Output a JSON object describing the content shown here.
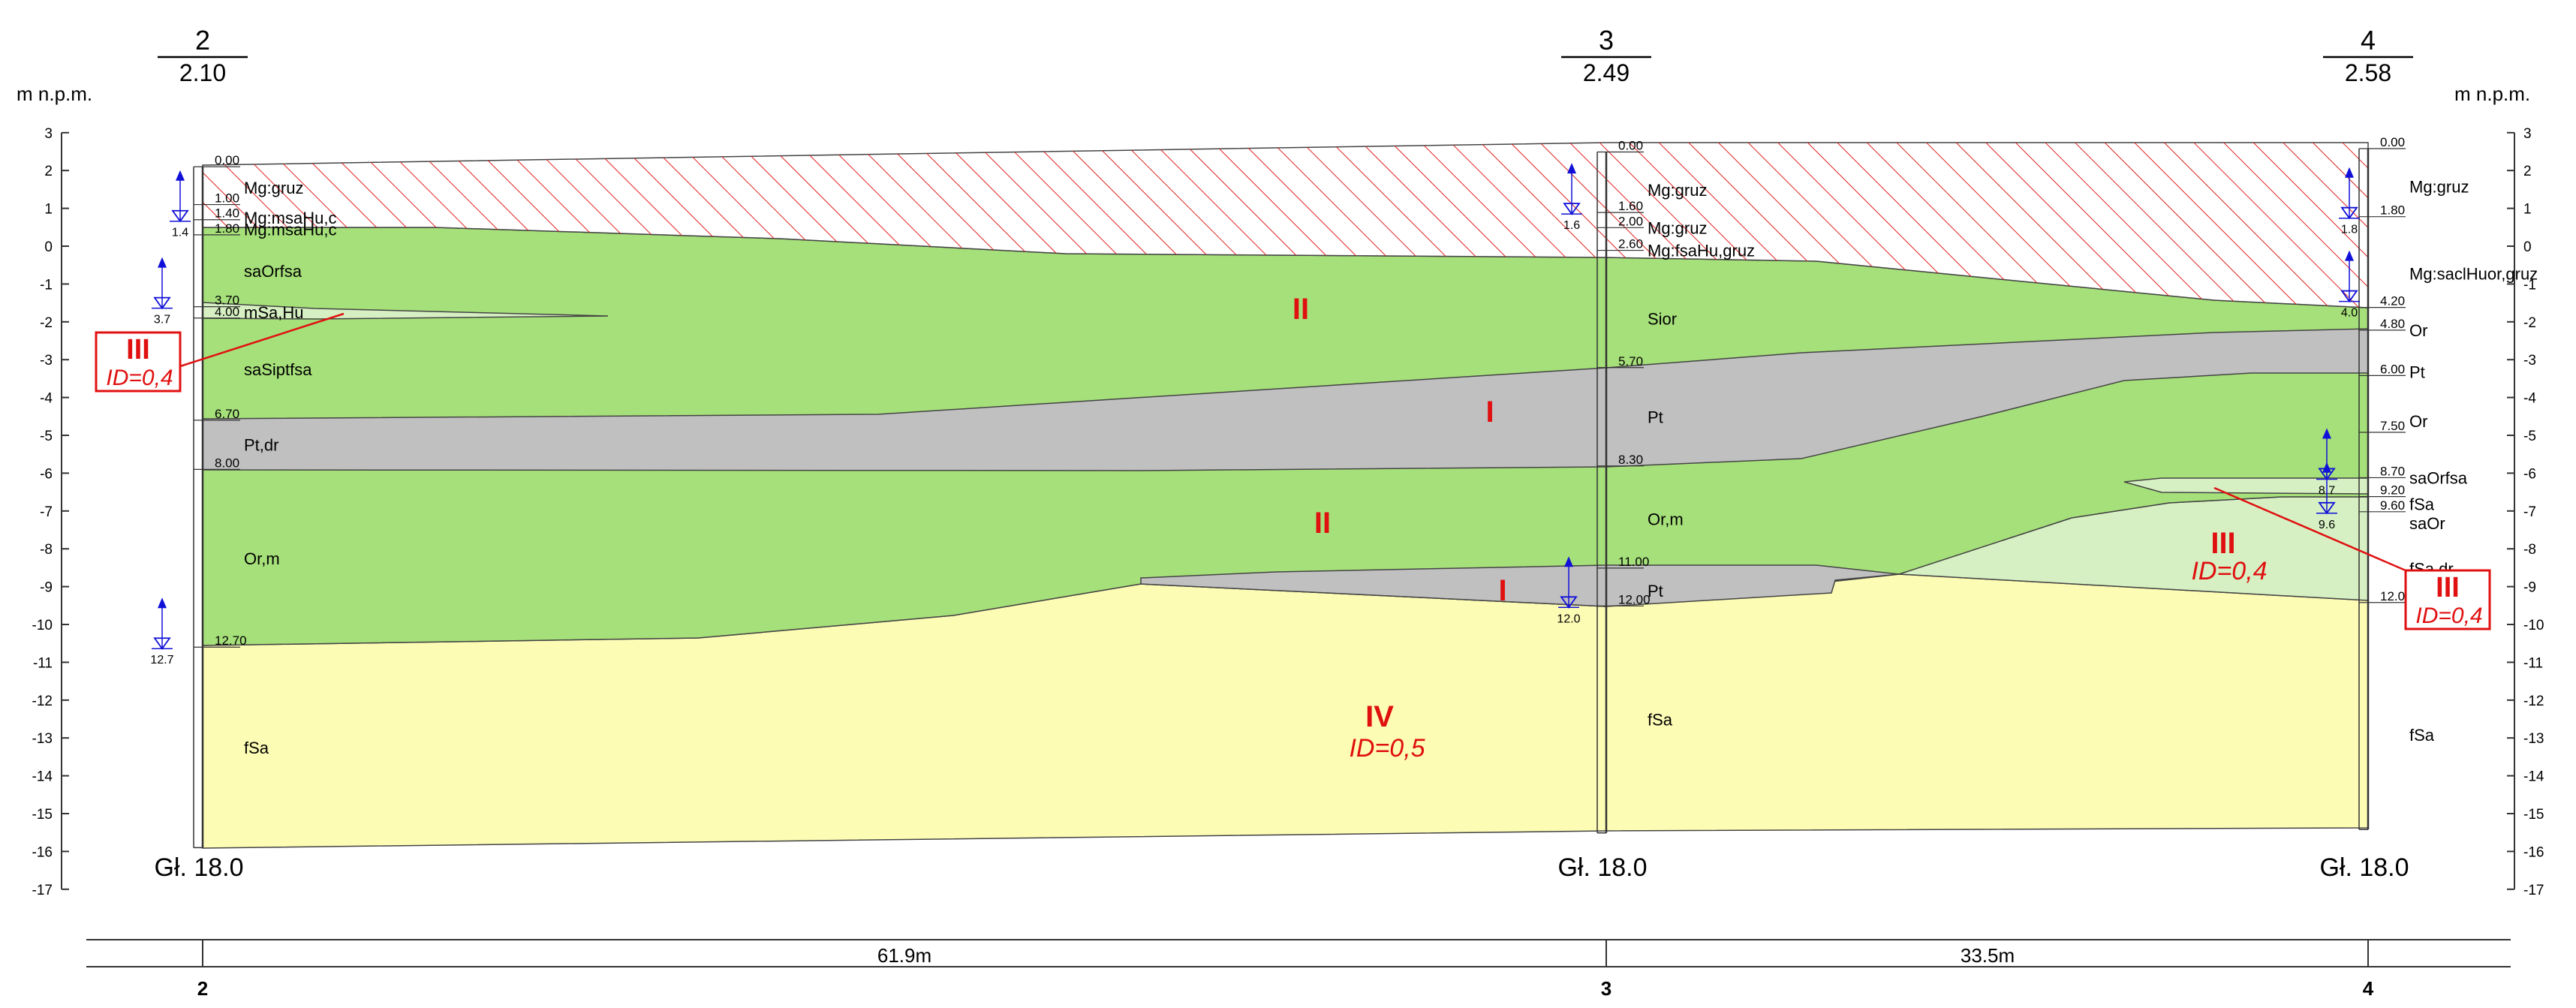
{
  "axis": {
    "unit": "m n.p.m.",
    "ticks": [
      "3",
      "2",
      "1",
      "0",
      "-1",
      "-2",
      "-3",
      "-4",
      "-5",
      "-6",
      "-7",
      "-8",
      "-9",
      "-10",
      "-11",
      "-12",
      "-13",
      "-14",
      "-15",
      "-16",
      "-17"
    ]
  },
  "boreholes": [
    {
      "id": "2",
      "elevation": "2.10",
      "depth_label": "Gł. 18.0",
      "depths": [
        {
          "v": 0.0,
          "t": "0.00"
        },
        {
          "v": 1.0,
          "t": "1.00"
        },
        {
          "v": 1.4,
          "t": "1.40"
        },
        {
          "v": 1.8,
          "t": "1.80"
        },
        {
          "v": 3.7,
          "t": "3.70"
        },
        {
          "v": 4.0,
          "t": "4.00"
        },
        {
          "v": 6.7,
          "t": "6.70"
        },
        {
          "v": 8.0,
          "t": "8.00"
        },
        {
          "v": 12.7,
          "t": "12.70"
        }
      ],
      "soils": [
        {
          "v": 0.55,
          "t": "Mg:gruz"
        },
        {
          "v": 1.35,
          "t": "Mg:msaHu,c"
        },
        {
          "v": 1.65,
          "t": "Mg:msaHu,c"
        },
        {
          "v": 2.75,
          "t": "saOrfsa"
        },
        {
          "v": 3.85,
          "t": "mSa,Hu"
        },
        {
          "v": 5.35,
          "t": "saSiptfsa"
        },
        {
          "v": 7.35,
          "t": "Pt,dr"
        },
        {
          "v": 10.35,
          "t": "Or,m"
        },
        {
          "v": 15.35,
          "t": "fSa"
        }
      ],
      "water": [
        {
          "v": 1.4,
          "t": "1.4"
        },
        {
          "v": 3.7,
          "t": "3.7"
        },
        {
          "v": 12.7,
          "t": "12.7"
        }
      ]
    },
    {
      "id": "3",
      "elevation": "2.49",
      "depth_label": "Gł. 18.0",
      "depths": [
        {
          "v": 0.0,
          "t": "0.00"
        },
        {
          "v": 1.6,
          "t": "1.60"
        },
        {
          "v": 2.0,
          "t": "2.00"
        },
        {
          "v": 2.6,
          "t": "2.60"
        },
        {
          "v": 5.7,
          "t": "5.70"
        },
        {
          "v": 8.3,
          "t": "8.30"
        },
        {
          "v": 11.0,
          "t": "11.00"
        },
        {
          "v": 12.0,
          "t": "12.00"
        }
      ],
      "soils": [
        {
          "v": 1.0,
          "t": "Mg:gruz"
        },
        {
          "v": 2.0,
          "t": "Mg:gruz"
        },
        {
          "v": 2.6,
          "t": "Mg:fsaHu,gruz"
        },
        {
          "v": 4.4,
          "t": "Sior"
        },
        {
          "v": 7.0,
          "t": "Pt"
        },
        {
          "v": 9.7,
          "t": "Or,m"
        },
        {
          "v": 11.6,
          "t": "Pt"
        },
        {
          "v": 15.0,
          "t": "fSa"
        }
      ],
      "water": [
        {
          "v": 1.6,
          "t": "1.6"
        },
        {
          "v": 12.0,
          "t": "12.0"
        }
      ]
    },
    {
      "id": "4",
      "elevation": "2.58",
      "depth_label": "Gł. 18.0",
      "depths": [
        {
          "v": 0.0,
          "t": "0.00"
        },
        {
          "v": 1.8,
          "t": "1.80"
        },
        {
          "v": 4.2,
          "t": "4.20"
        },
        {
          "v": 4.8,
          "t": "4.80"
        },
        {
          "v": 6.0,
          "t": "6.00"
        },
        {
          "v": 7.5,
          "t": "7.50"
        },
        {
          "v": 8.7,
          "t": "8.70"
        },
        {
          "v": 9.2,
          "t": "9.20"
        },
        {
          "v": 9.6,
          "t": "9.60"
        },
        {
          "v": 12.0,
          "t": "12.00"
        }
      ],
      "soils": [
        {
          "v": 1.0,
          "t": "Mg:gruz"
        },
        {
          "v": 3.3,
          "t": "Mg:saclHuor,gruz"
        },
        {
          "v": 4.8,
          "t": "Or"
        },
        {
          "v": 5.9,
          "t": "Pt"
        },
        {
          "v": 7.2,
          "t": "Or"
        },
        {
          "v": 8.7,
          "t": "saOrfsa"
        },
        {
          "v": 9.4,
          "t": "fSa"
        },
        {
          "v": 9.9,
          "t": "saOr"
        },
        {
          "v": 11.1,
          "t": "fSa,dr"
        },
        {
          "v": 15.5,
          "t": "fSa"
        }
      ],
      "water": [
        {
          "v": 1.8,
          "t": "1.8"
        },
        {
          "v": 4.0,
          "t": "4.0"
        },
        {
          "v": 8.7,
          "t": "8.7"
        },
        {
          "v": 9.6,
          "t": "9.6"
        }
      ]
    }
  ],
  "layers": [
    {
      "numeral": "II",
      "id": ""
    },
    {
      "numeral": "I",
      "id": ""
    },
    {
      "numeral": "II",
      "id": ""
    },
    {
      "numeral": "I",
      "id": ""
    },
    {
      "numeral": "IV",
      "id": "ID=0,5"
    },
    {
      "numeral": "III",
      "id": "ID=0,4"
    },
    {
      "numeral": "III",
      "id": "ID=0,4"
    },
    {
      "numeral": "III",
      "id": "ID=0,4"
    }
  ],
  "distances": [
    {
      "label": "61.9m",
      "from": "2",
      "to": "3"
    },
    {
      "label": "33.5m",
      "from": "3",
      "to": "4"
    }
  ],
  "colors": {
    "fill_soil": "#e80000",
    "green": "#a6e07a",
    "gray": "#c0c0c0",
    "sand": "#fdfcb5",
    "lightgreen": "#d6f0c3",
    "water": "#1010d8",
    "label": "#e01010"
  }
}
